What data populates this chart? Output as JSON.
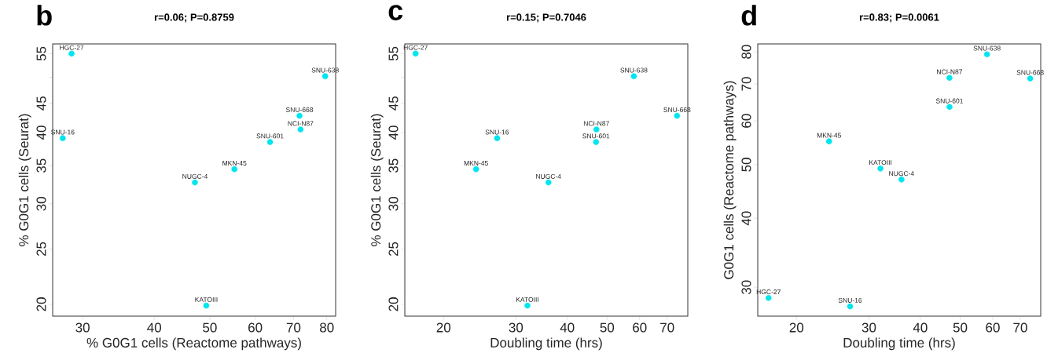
{
  "chart_data": [
    {
      "type": "scatter",
      "title": "r=0.06; P=0.8759",
      "xlabel": "% G0G1 cells (Reactome pathways)",
      "ylabel": "% G0G1 cells (Seurat)",
      "log": "xy",
      "marker": "circle",
      "color": "#00e5ee",
      "x": [
        28.7,
        79.5,
        71.7,
        72.0,
        63.7,
        55.2,
        47.1,
        27.7,
        49.3
      ],
      "values": [
        55.0,
        50.2,
        42.8,
        40.5,
        38.5,
        34.5,
        32.7,
        39.1,
        19.9
      ],
      "xlim": [
        26.6,
        82.9
      ],
      "ylim": [
        19.07,
        57.2
      ],
      "xticks": [
        30,
        40,
        50,
        60,
        70,
        80
      ],
      "yticks": [
        20,
        25,
        30,
        35,
        40,
        45,
        {
          "value": 50,
          "label": null
        },
        55
      ],
      "annotations": [
        "b",
        {
          "text": "HGC-27",
          "x": 28.7,
          "y": 55.0
        },
        {
          "text": "SNU-638",
          "x": 79.5,
          "y": 50.2
        },
        {
          "text": "SNU-668",
          "x": 71.7,
          "y": 42.8
        },
        {
          "text": "NCI-N87",
          "x": 72.0,
          "y": 40.5
        },
        {
          "text": "SNU-601",
          "x": 63.7,
          "y": 38.5
        },
        {
          "text": "MKN-45",
          "x": 55.2,
          "y": 34.5
        },
        {
          "text": "NUGC-4",
          "x": 47.1,
          "y": 32.7
        },
        {
          "text": "SNU-16",
          "x": 27.7,
          "y": 39.1
        },
        {
          "text": "KATOIII",
          "x": 49.3,
          "y": 19.9
        }
      ]
    },
    {
      "type": "scatter",
      "title": "r=0.15; P=0.7046",
      "xlabel": "Doubling time (hrs)",
      "ylabel": "% G0G1 cells (Seurat)",
      "log": "xy",
      "marker": "circle",
      "color": "#00e5ee",
      "x": [
        17.1,
        58.1,
        74.0,
        47.1,
        47.0,
        27.0,
        24.0,
        36.0,
        32.0
      ],
      "values": [
        55.0,
        50.2,
        42.8,
        40.5,
        38.5,
        39.1,
        34.5,
        32.7,
        19.9
      ],
      "xlim": [
        16.1,
        78.6
      ],
      "ylim": [
        19.07,
        57.2
      ],
      "xticks": [
        20,
        30,
        40,
        50,
        60,
        70
      ],
      "yticks": [
        20,
        25,
        30,
        35,
        40,
        45,
        {
          "value": 50,
          "label": null
        },
        55
      ],
      "annotations": [
        "c",
        {
          "text": "HGC-27",
          "x": 17.1,
          "y": 55.0
        },
        {
          "text": "SNU-638",
          "x": 58.1,
          "y": 50.2
        },
        {
          "text": "SNU-668",
          "x": 74.0,
          "y": 42.8
        },
        {
          "text": "NCI-N87",
          "x": 47.1,
          "y": 40.5
        },
        {
          "text": "SNU-601",
          "x": 47.0,
          "y": 38.5
        },
        {
          "text": "SNU-16",
          "x": 27.0,
          "y": 39.1
        },
        {
          "text": "MKN-45",
          "x": 24.0,
          "y": 34.5
        },
        {
          "text": "NUGC-4",
          "x": 36.0,
          "y": 32.7
        },
        {
          "text": "KATOIII",
          "x": 32.0,
          "y": 19.9
        }
      ]
    },
    {
      "type": "scatter",
      "title": "r=0.83; P=0.0061",
      "xlabel": "Doubling time (hrs)",
      "ylabel": "G0G1 cells (Reactome pathways)",
      "log": "xy",
      "marker": "circle",
      "color": "#00e5ee",
      "x": [
        58.1,
        47.1,
        74.0,
        47.1,
        24.0,
        32.0,
        36.0,
        17.1,
        27.0
      ],
      "values": [
        79.2,
        71.8,
        71.6,
        63.6,
        55.1,
        49.2,
        47.0,
        28.7,
        27.7
      ],
      "xlim": [
        16.1,
        78.5
      ],
      "ylim": [
        26.6,
        82.7
      ],
      "xticks": [
        20,
        30,
        40,
        50,
        60,
        70
      ],
      "yticks": [
        30,
        40,
        50,
        60,
        70,
        80
      ],
      "annotations": [
        "d",
        {
          "text": "SNU-638",
          "x": 58.1,
          "y": 79.2
        },
        {
          "text": "NCI-N87",
          "x": 47.1,
          "y": 71.8
        },
        {
          "text": "SNU-668",
          "x": 74.0,
          "y": 71.6
        },
        {
          "text": "SNU-601",
          "x": 47.1,
          "y": 63.6
        },
        {
          "text": "MKN-45",
          "x": 24.0,
          "y": 55.1
        },
        {
          "text": "KATOIII",
          "x": 32.0,
          "y": 49.2
        },
        {
          "text": "NUGC-4",
          "x": 36.0,
          "y": 47.0
        },
        {
          "text": "HGC-27",
          "x": 17.1,
          "y": 28.7
        },
        {
          "text": "SNU-16",
          "x": 27.0,
          "y": 27.7
        }
      ]
    }
  ]
}
